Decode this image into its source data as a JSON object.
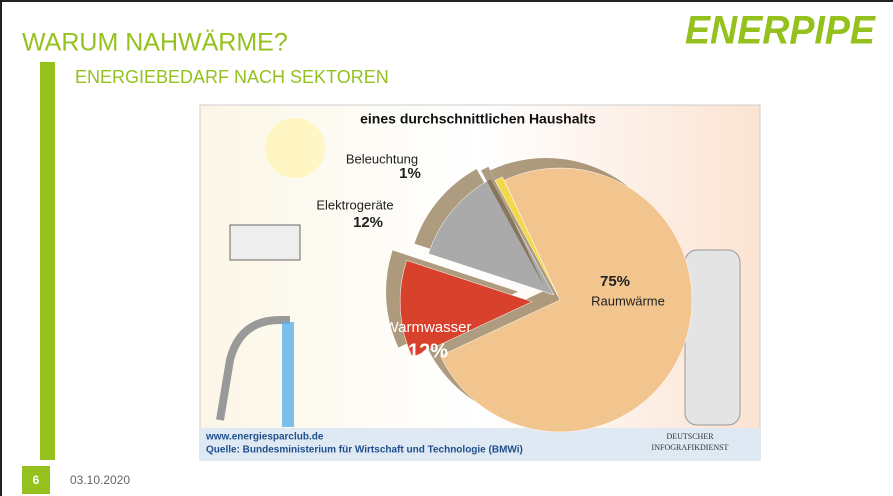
{
  "slide": {
    "title": "WARUM NAHWÄRME?",
    "subtitle": "ENERGIEBEDARF NACH SEKTOREN",
    "logo": "ENERPIPE",
    "page_number": "6",
    "date": "03.10.2020"
  },
  "chart_data": {
    "type": "pie",
    "title": "eines durchschnittlichen Haushalts",
    "categories": [
      "Raumwärme",
      "Warmwasser",
      "Elektrogeräte",
      "Beleuchtung"
    ],
    "values": [
      75,
      12,
      12,
      1
    ],
    "value_labels": [
      "75%",
      "12%",
      "12%",
      "1%"
    ],
    "colors": [
      "#f3c58e",
      "#d8412c",
      "#aaaaaa",
      "#f4d84c"
    ],
    "source_url": "www.energiesparclub.de",
    "source": "Quelle: Bundesministerium für Wirtschaft und Technologie (BMWi)",
    "credit": [
      "DEUTSCHER",
      "INFOGRAFIKDIENST"
    ]
  }
}
